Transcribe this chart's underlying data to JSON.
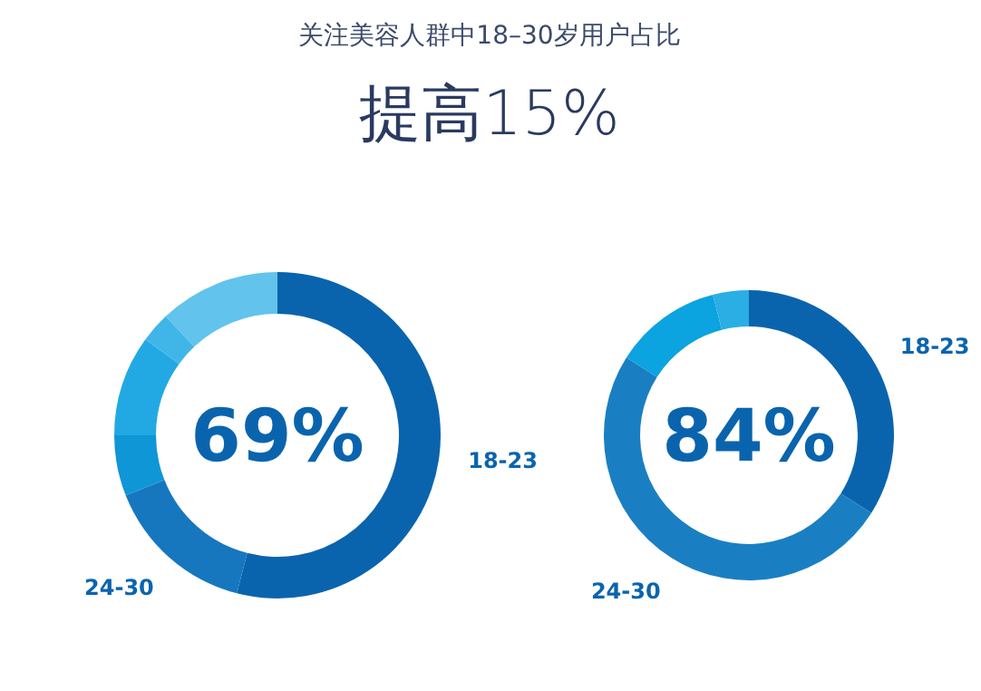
{
  "chart_data": [
    {
      "type": "donut",
      "title": "关注美容人群中18–30岁用户占比",
      "subtitle": "提高15%",
      "categories": [
        "18-23",
        "24-30",
        null,
        null,
        null,
        null
      ],
      "values": [
        54,
        15,
        6,
        10,
        3,
        12
      ],
      "colors": [
        "#0a64ad",
        "#1677bf",
        "#0f96d6",
        "#22a9e3",
        "#40b6e8",
        "#62c3ec"
      ],
      "annotations": [
        "69%"
      ]
    },
    {
      "type": "donut",
      "categories": [
        "18-23",
        "24-30",
        null,
        null
      ],
      "values": [
        34,
        50,
        12,
        4
      ],
      "colors": [
        "#0a64ad",
        "#1a7fc2",
        "#0ba3e0",
        "#2aaee4"
      ],
      "annotations": [
        "84%"
      ]
    }
  ]
}
